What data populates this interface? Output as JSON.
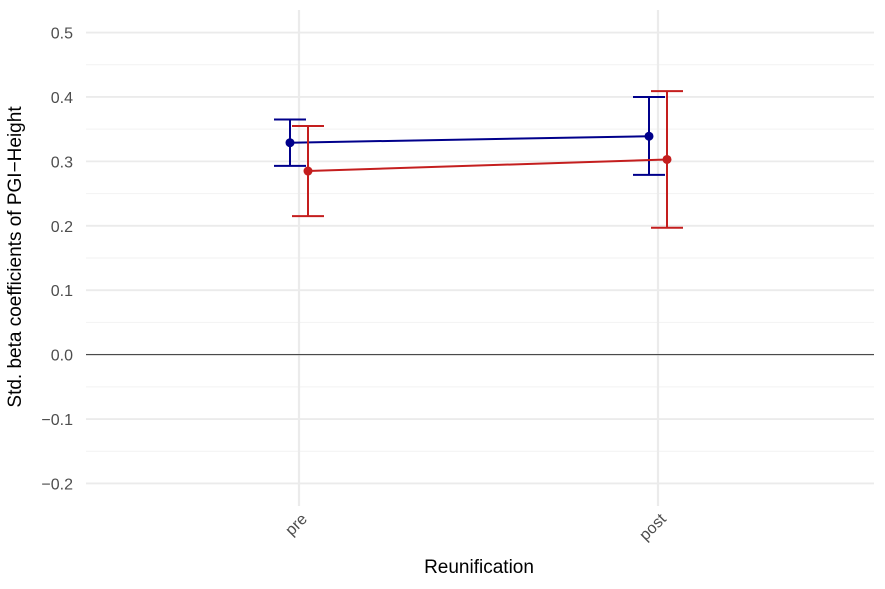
{
  "chart_data": {
    "type": "line",
    "title": "",
    "xlabel": "Reunification",
    "ylabel": "Std. beta coefficients of PGI−Height",
    "categories": [
      "pre",
      "post"
    ],
    "ylim": [
      -0.235,
      0.535
    ],
    "yticks": [
      -0.2,
      -0.1,
      0.0,
      0.1,
      0.2,
      0.3,
      0.4,
      0.5
    ],
    "ytick_labels": [
      "−0.2",
      "−0.1",
      "0.0",
      "0.1",
      "0.2",
      "0.3",
      "0.4",
      "0.5"
    ],
    "grid": true,
    "legend": "none",
    "reference_line": 0.0,
    "series": [
      {
        "color": "#00008b",
        "values": [
          0.329,
          0.339
        ],
        "lower": [
          0.293,
          0.279
        ],
        "upper": [
          0.365,
          0.4
        ]
      },
      {
        "color": "#c41e1e",
        "values": [
          0.285,
          0.303
        ],
        "lower": [
          0.215,
          0.197
        ],
        "upper": [
          0.355,
          0.409
        ]
      }
    ]
  }
}
